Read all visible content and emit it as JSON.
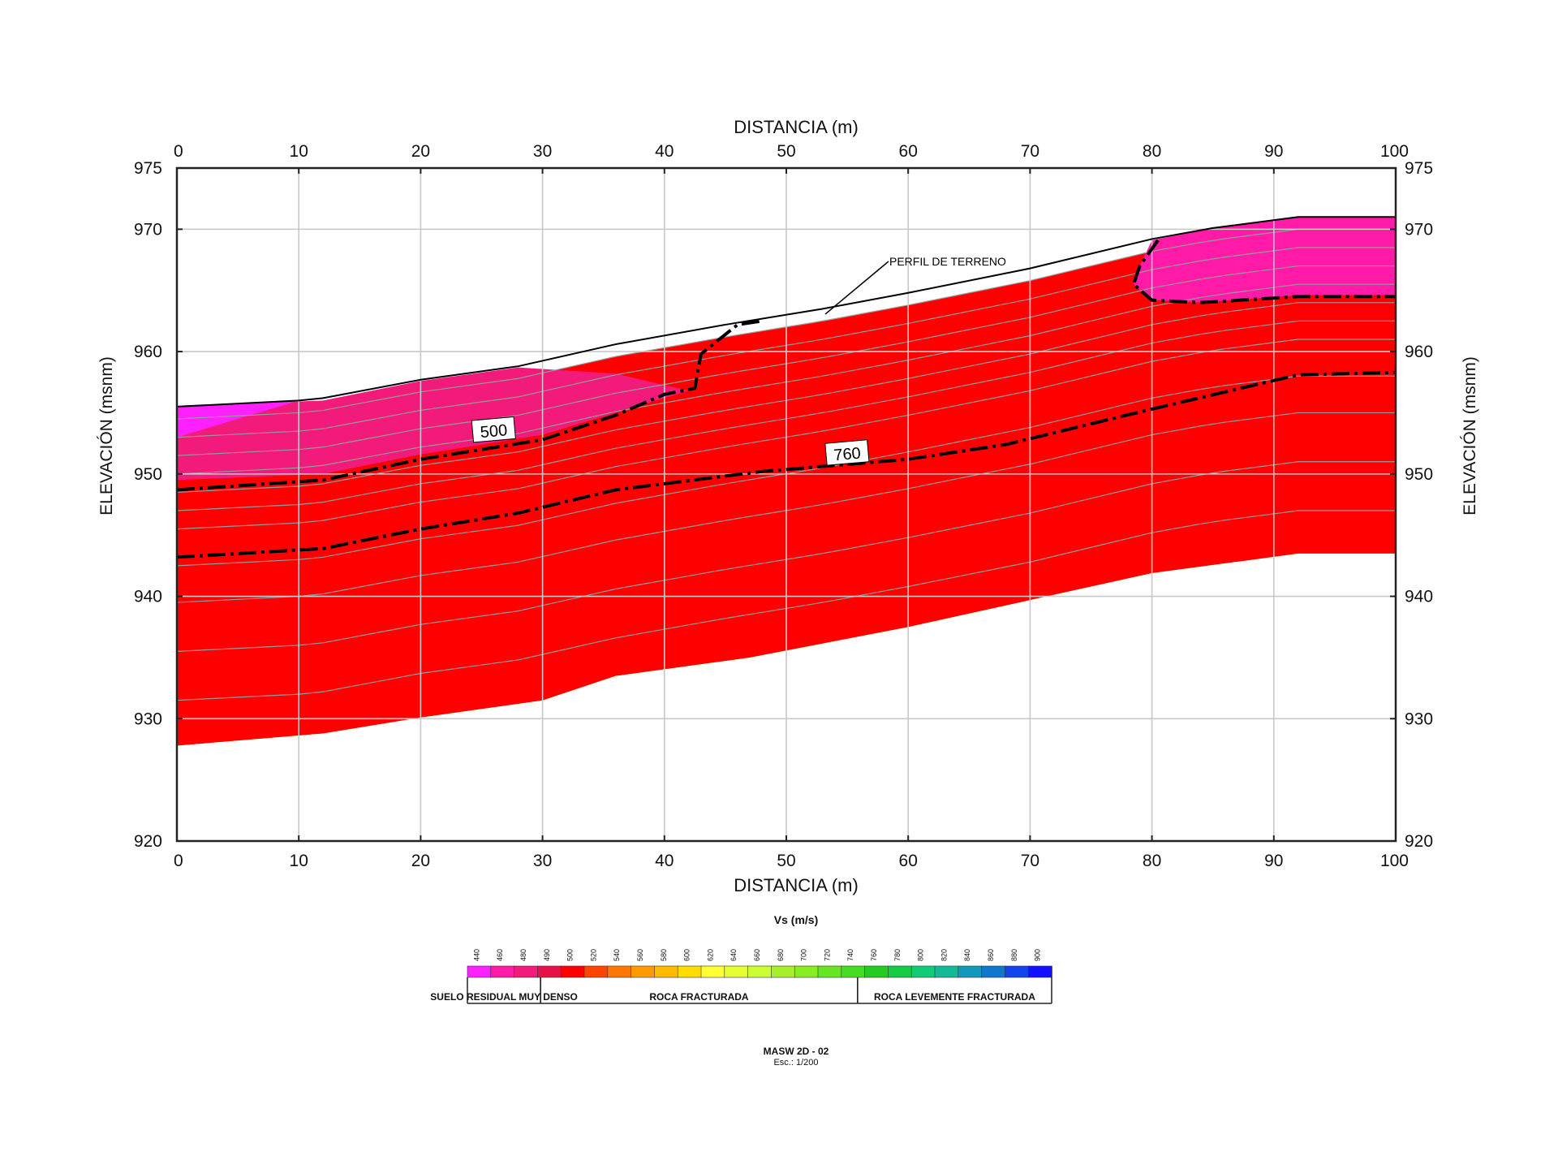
{
  "chart_data": {
    "type": "heatmap",
    "subtype": "2d-contour-profile",
    "title": "MASW 2D - 02",
    "subtitle": "Esc.: 1/200",
    "xlabel_top": "DISTANCIA (m)",
    "xlabel_bottom": "DISTANCIA (m)",
    "ylabel_left": "ELEVACIÓN (msnm)",
    "ylabel_right": "ELEVACIÓN (msnm)",
    "xlim": [
      0,
      100
    ],
    "ylim": [
      920,
      975
    ],
    "x_ticks": [
      0,
      10,
      20,
      30,
      40,
      50,
      60,
      70,
      80,
      90,
      100
    ],
    "y_ticks": [
      975,
      970,
      960,
      950,
      940,
      930,
      920
    ],
    "grid": true,
    "terrain_profile": {
      "label": "PERFIL DE TERRENO",
      "x": [
        0,
        10,
        12,
        20,
        28,
        36,
        45,
        53,
        60,
        70,
        80,
        85,
        92,
        100
      ],
      "y": [
        955.5,
        956,
        956.2,
        957.7,
        958.8,
        960.6,
        962.2,
        963.5,
        964.8,
        966.8,
        969.2,
        970.1,
        971,
        971
      ]
    },
    "section_bottom": {
      "x": [
        0,
        12,
        20,
        30,
        36,
        47,
        60,
        70,
        80,
        92,
        100
      ],
      "y": [
        927.8,
        928.8,
        930.1,
        931.5,
        933.5,
        935,
        937.5,
        939.7,
        941.9,
        943.5,
        943.5
      ]
    },
    "contour_lines": [
      {
        "value": 500,
        "label": "500",
        "style": "dash-dot",
        "x": [
          0,
          12,
          20,
          30,
          36,
          40,
          42.5,
          43,
          46,
          48
        ],
        "y": [
          948.7,
          949.5,
          951.2,
          952.8,
          954.8,
          956.5,
          957,
          959.8,
          962.2,
          962.5
        ]
      },
      {
        "value": 500,
        "label": "",
        "style": "dash-dot",
        "x": [
          80.5,
          79,
          78.5,
          80,
          84,
          92,
          100
        ],
        "y": [
          969.1,
          967,
          965.5,
          964.2,
          964,
          964.5,
          964.5
        ]
      },
      {
        "value": 760,
        "label": "760",
        "style": "dash-dot",
        "x": [
          0,
          12,
          20,
          28,
          36,
          48,
          60,
          68,
          80,
          92,
          100
        ],
        "y": [
          943.2,
          943.9,
          945.5,
          946.8,
          948.7,
          950.2,
          951.2,
          952.4,
          955.3,
          958.1,
          958.3
        ]
      }
    ],
    "colorbar": {
      "title": "Vs (m/s)",
      "ticks": [
        440,
        460,
        480,
        490,
        500,
        520,
        540,
        560,
        580,
        600,
        620,
        640,
        660,
        680,
        700,
        720,
        740,
        760,
        780,
        800,
        820,
        840,
        860,
        880,
        900
      ],
      "colors": [
        "#ff20ff",
        "#ff1aa8",
        "#f21a7a",
        "#e8104a",
        "#ff0000",
        "#ff4400",
        "#ff7700",
        "#ff9a00",
        "#ffbb00",
        "#ffdd00",
        "#ffff33",
        "#e6ff33",
        "#ccff33",
        "#a8f02c",
        "#88ee22",
        "#66e622",
        "#44dd22",
        "#22cc22",
        "#11cc44",
        "#11cc77",
        "#11bb99",
        "#1199bb",
        "#1177cc",
        "#1144ee",
        "#1111ff"
      ],
      "categories": [
        {
          "label": "SUELO RESIDUAL MUY DENSO",
          "from": 440,
          "to": 500
        },
        {
          "label": "ROCA FRACTURADA",
          "from": 500,
          "to": 760
        },
        {
          "label": "ROCA LEVEMENTE FRACTURADA",
          "from": 760,
          "to": 900
        }
      ]
    },
    "fill_layers": [
      {
        "color": "#1111ff",
        "offset": -28
      },
      {
        "color": "#1177cc",
        "offset": -24
      },
      {
        "color": "#1199bb",
        "offset": -20
      },
      {
        "color": "#11cc77",
        "offset": -16
      },
      {
        "color": "#22cc22",
        "offset": -13
      },
      {
        "color": "#44dd22",
        "offset": -10
      },
      {
        "color": "#88ee22",
        "offset": -8.5
      },
      {
        "color": "#ccff33",
        "offset": -7
      },
      {
        "color": "#ffff33",
        "offset": -5.5
      },
      {
        "color": "#ffbb00",
        "offset": -4
      },
      {
        "color": "#ff7700",
        "offset": -2.5
      },
      {
        "color": "#ff0000",
        "offset": -1
      }
    ]
  }
}
